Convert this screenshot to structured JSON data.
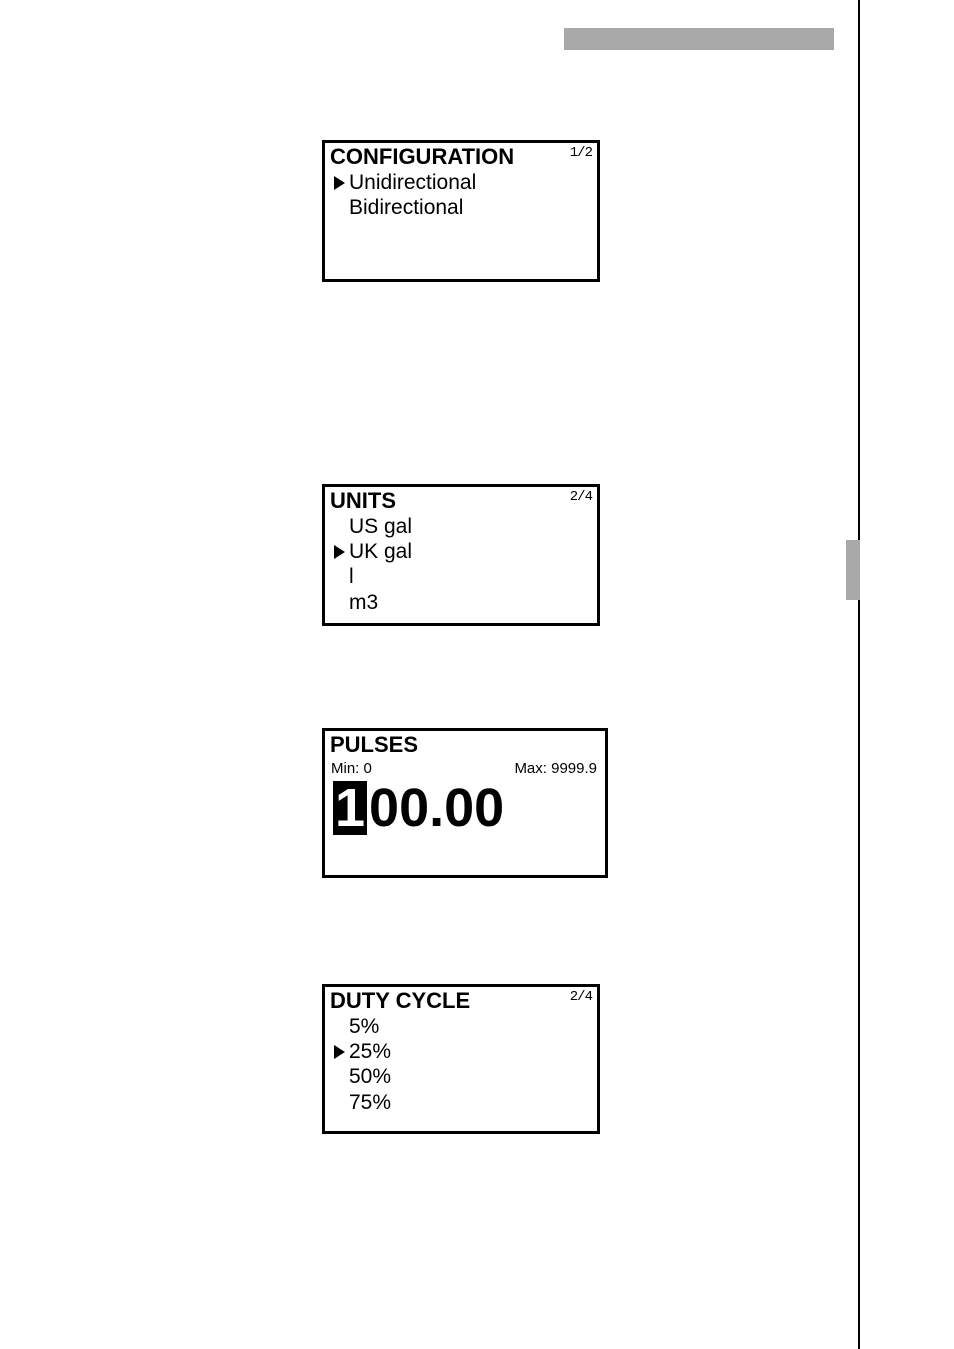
{
  "decor": {
    "grey_top_bar": "#a9a9a9",
    "grey_side_bar": "#a9a9a9"
  },
  "config_panel": {
    "title": "CONFIGURATION",
    "page_indicator": "1/2",
    "items": [
      {
        "label": "Unidirectional",
        "selected": true
      },
      {
        "label": "Bidirectional",
        "selected": false
      }
    ]
  },
  "units_panel": {
    "title": "UNITS",
    "page_indicator": "2/4",
    "items": [
      {
        "label": "US gal",
        "selected": false
      },
      {
        "label": "UK gal",
        "selected": true
      },
      {
        "label": "l",
        "selected": false
      },
      {
        "label": "m3",
        "selected": false
      }
    ]
  },
  "pulses_panel": {
    "title": "PULSES",
    "min_label": "Min: 0",
    "max_label": "Max: 9999.9",
    "highlight_digit": "1",
    "rest_digits": "00.00"
  },
  "duty_panel": {
    "title": "DUTY CYCLE",
    "page_indicator": "2/4",
    "items": [
      {
        "label": "5%",
        "selected": false
      },
      {
        "label": "25%",
        "selected": true
      },
      {
        "label": "50%",
        "selected": false
      },
      {
        "label": "75%",
        "selected": false
      }
    ]
  }
}
